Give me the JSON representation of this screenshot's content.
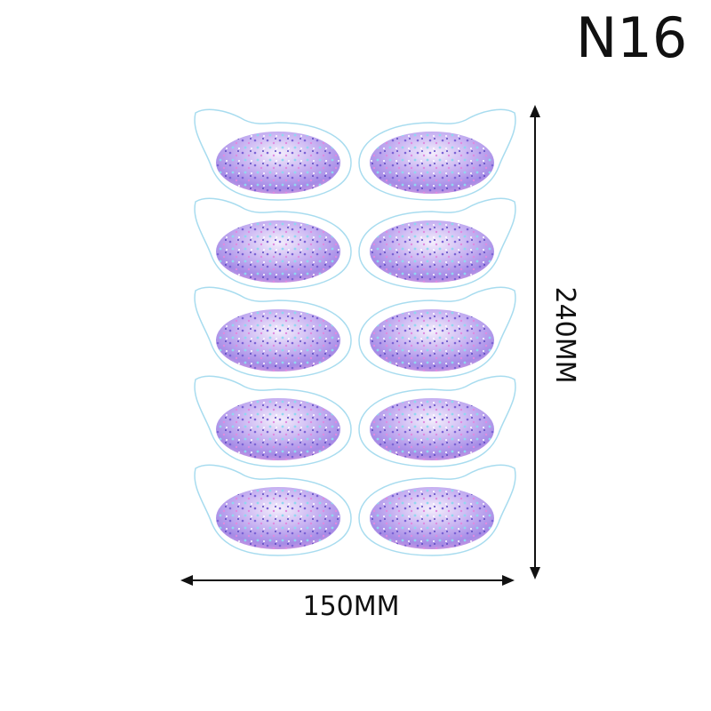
{
  "title": "N16",
  "dimensions": {
    "height_label": "240MM",
    "width_label": "150MM"
  },
  "sheet": {
    "rows": 5,
    "columns": 2,
    "outline_color": "#a8dcef",
    "glitter_colors": [
      "#b9a3f0",
      "#e3a6e8",
      "#8fd8f0",
      "#7b63d6",
      "#ffffff"
    ]
  }
}
